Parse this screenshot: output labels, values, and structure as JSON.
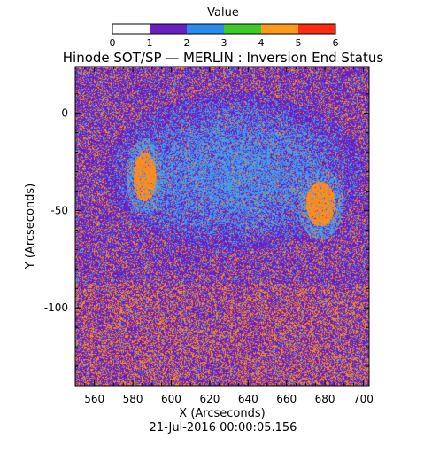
{
  "chart_data": {
    "type": "heatmap",
    "title": "Hinode SOT/SP — MERLIN : Inversion End Status",
    "xlabel": "X (Arcseconds)",
    "ylabel": "Y (Arcseconds)",
    "footer": "21-Jul-2016 00:00:05.156",
    "xlim": [
      550,
      703
    ],
    "ylim": [
      -140,
      24
    ],
    "x_ticks": [
      560,
      580,
      600,
      620,
      640,
      660,
      680,
      700
    ],
    "y_ticks": [
      0,
      -50,
      -100
    ],
    "colorbar": {
      "title": "Value",
      "range": [
        0,
        6
      ],
      "ticks": [
        0,
        1,
        2,
        3,
        4,
        5,
        6
      ],
      "colors": [
        "#ffffff",
        "#6a1fc2",
        "#2a8cf0",
        "#3ecb2a",
        "#ff9a1a",
        "#ff2a10"
      ]
    },
    "status_colors": {
      "1": "#6a1fc2",
      "2": "#3f9bf0",
      "5": "#ff8c1a"
    },
    "dominant_regions": [
      {
        "value": 5,
        "x_range": [
          580,
          592
        ],
        "y_range": [
          -45,
          -20
        ]
      },
      {
        "value": 5,
        "x_range": [
          670,
          685
        ],
        "y_range": [
          -58,
          -35
        ]
      },
      {
        "value": 2,
        "x_range": [
          565,
          700
        ],
        "y_range": [
          -70,
          10
        ]
      },
      {
        "value": 5,
        "x_range": [
          550,
          703
        ],
        "y_range": [
          -140,
          -95
        ]
      }
    ]
  }
}
